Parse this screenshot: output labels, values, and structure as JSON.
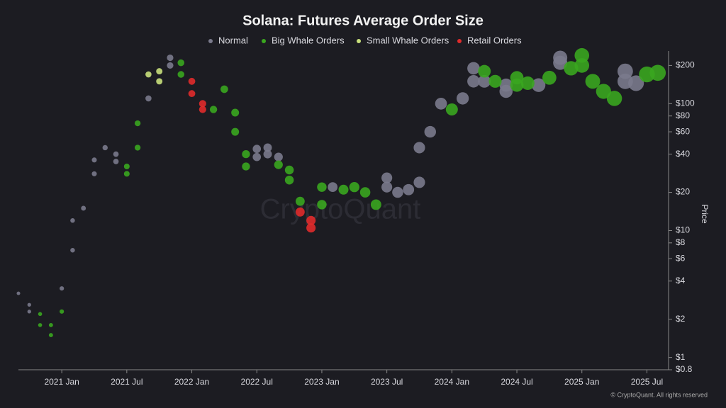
{
  "chart_data": {
    "type": "scatter",
    "title": "Solana: Futures Average Order Size",
    "watermark": "CryptoQuant",
    "y_label": "Price",
    "footer": "© CryptoQuant. All rights reserved",
    "log_y": true,
    "ylim": [
      0.8,
      260
    ],
    "yticks": [
      {
        "value": 0.8,
        "label": "$0.8"
      },
      {
        "value": 1,
        "label": "$1"
      },
      {
        "value": 2,
        "label": "$2"
      },
      {
        "value": 4,
        "label": "$4"
      },
      {
        "value": 6,
        "label": "$6"
      },
      {
        "value": 8,
        "label": "$8"
      },
      {
        "value": 10,
        "label": "$10"
      },
      {
        "value": 20,
        "label": "$20"
      },
      {
        "value": 40,
        "label": "$40"
      },
      {
        "value": 60,
        "label": "$60"
      },
      {
        "value": 80,
        "label": "$80"
      },
      {
        "value": 100,
        "label": "$100"
      },
      {
        "value": 200,
        "label": "$200"
      }
    ],
    "xlim": [
      "2020-09",
      "2025-09"
    ],
    "xticks": [
      {
        "value": "2021-01",
        "label": "2021 Jan"
      },
      {
        "value": "2021-07",
        "label": "2021 Jul"
      },
      {
        "value": "2022-01",
        "label": "2022 Jan"
      },
      {
        "value": "2022-07",
        "label": "2022 Jul"
      },
      {
        "value": "2023-01",
        "label": "2023 Jan"
      },
      {
        "value": "2023-07",
        "label": "2023 Jul"
      },
      {
        "value": "2024-01",
        "label": "2024 Jan"
      },
      {
        "value": "2024-07",
        "label": "2024 Jul"
      },
      {
        "value": "2025-01",
        "label": "2025 Jan"
      },
      {
        "value": "2025-07",
        "label": "2025 Jul"
      }
    ],
    "series": [
      {
        "name": "Normal",
        "color": "#7a7a8c",
        "x": [
          "2020-09",
          "2020-10",
          "2020-10",
          "2021-01",
          "2021-02",
          "2021-02",
          "2021-03",
          "2021-04",
          "2021-04",
          "2021-05",
          "2021-06",
          "2021-06",
          "2021-09",
          "2021-11",
          "2021-11",
          "2022-07",
          "2022-07",
          "2022-08",
          "2022-08",
          "2022-09",
          "2023-02",
          "2023-07",
          "2023-07",
          "2023-08",
          "2023-09",
          "2023-10",
          "2023-10",
          "2023-11",
          "2023-12",
          "2024-02",
          "2024-03",
          "2024-03",
          "2024-04",
          "2024-06",
          "2024-06",
          "2024-09",
          "2024-11",
          "2024-11",
          "2025-05",
          "2025-05",
          "2025-06"
        ],
        "values": [
          3.2,
          2.6,
          2.3,
          3.5,
          7,
          12,
          15,
          28,
          36,
          45,
          40,
          35,
          110,
          230,
          200,
          38,
          44,
          40,
          45,
          38,
          22,
          26,
          22,
          20,
          21,
          24,
          45,
          60,
          100,
          110,
          150,
          190,
          150,
          140,
          125,
          140,
          230,
          210,
          150,
          180,
          145
        ]
      },
      {
        "name": "Big Whale Orders",
        "color": "#3aa61f",
        "x": [
          "2020-11",
          "2020-11",
          "2020-12",
          "2020-12",
          "2021-01",
          "2021-07",
          "2021-07",
          "2021-08",
          "2021-08",
          "2021-12",
          "2021-12",
          "2022-03",
          "2022-04",
          "2022-05",
          "2022-05",
          "2022-06",
          "2022-06",
          "2022-09",
          "2022-10",
          "2022-10",
          "2022-11",
          "2023-01",
          "2023-01",
          "2023-03",
          "2023-04",
          "2023-05",
          "2023-06",
          "2024-01",
          "2024-04",
          "2024-05",
          "2024-07",
          "2024-07",
          "2024-08",
          "2024-10",
          "2024-12",
          "2025-01",
          "2025-01",
          "2025-02",
          "2025-03",
          "2025-04",
          "2025-07",
          "2025-08"
        ],
        "values": [
          1.8,
          2.2,
          1.5,
          1.8,
          2.3,
          28,
          32,
          45,
          70,
          210,
          170,
          90,
          130,
          85,
          60,
          40,
          32,
          33,
          30,
          25,
          17,
          22,
          16,
          21,
          22,
          20,
          16,
          90,
          180,
          150,
          160,
          140,
          145,
          160,
          190,
          240,
          200,
          150,
          125,
          110,
          170,
          175
        ]
      },
      {
        "name": "Small Whale Orders",
        "color": "#c9e07c",
        "x": [
          "2021-09",
          "2021-10",
          "2021-10"
        ],
        "values": [
          170,
          150,
          180
        ]
      },
      {
        "name": "Retail Orders",
        "color": "#e02b2b",
        "x": [
          "2022-01",
          "2022-01",
          "2022-02",
          "2022-02",
          "2022-11",
          "2022-12",
          "2022-12"
        ],
        "values": [
          150,
          120,
          100,
          90,
          14,
          12,
          10.5
        ]
      }
    ]
  }
}
